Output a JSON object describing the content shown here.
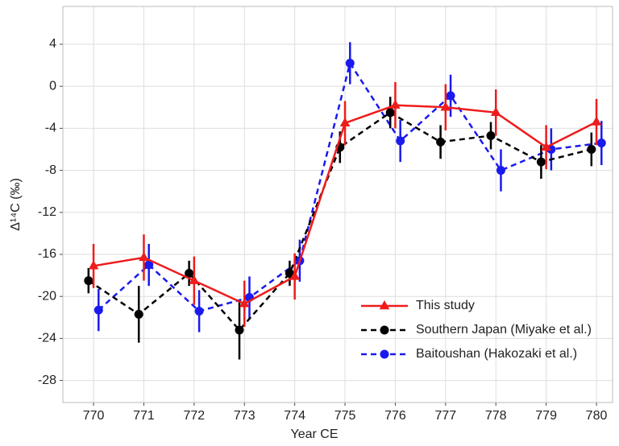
{
  "chart_data": {
    "type": "line",
    "xlabel": "Year CE",
    "ylabel": "Δ¹⁴C (‰)",
    "xlim": [
      769.39,
      780.32
    ],
    "xticks": [
      770,
      771,
      772,
      773,
      774,
      775,
      776,
      777,
      778,
      779,
      780
    ],
    "ylim": [
      -30.1,
      7.6
    ],
    "yticks": [
      -28,
      -24,
      -20,
      -16,
      -12,
      -8,
      -4,
      0,
      4
    ],
    "grid": true,
    "legend": "lower right",
    "series": [
      {
        "name": "This study",
        "color": "#ee1c1c",
        "linestyle": "solid",
        "marker": "triangle",
        "x": [
          770,
          771,
          772,
          773,
          774,
          775,
          776,
          777,
          778,
          779,
          780
        ],
        "values": [
          -17.1,
          -16.3,
          -18.5,
          -20.7,
          -18.1,
          -3.5,
          -1.8,
          -2.0,
          -2.5,
          -5.8,
          -3.4
        ],
        "errors": [
          2.1,
          2.2,
          2.3,
          2.2,
          2.2,
          2.1,
          2.2,
          2.2,
          2.2,
          2.1,
          2.2
        ]
      },
      {
        "name": "Southern Japan (Miyake et al.)",
        "color": "#000000",
        "linestyle": "dashed",
        "marker": "circle",
        "x": [
          769.9,
          770.9,
          771.9,
          772.9,
          773.9,
          774.9,
          775.9,
          776.9,
          777.9,
          778.9,
          779.9
        ],
        "values": [
          -18.5,
          -21.7,
          -17.8,
          -23.2,
          -17.8,
          -5.8,
          -2.5,
          -5.3,
          -4.7,
          -7.2,
          -6.0
        ],
        "errors": [
          1.2,
          2.7,
          1.2,
          2.8,
          1.2,
          1.5,
          1.5,
          1.6,
          1.3,
          1.6,
          1.6
        ]
      },
      {
        "name": "Baitoushan (Hakozaki et al.)",
        "color": "#1a1aee",
        "linestyle": "dashed",
        "marker": "circle",
        "x": [
          770.1,
          771.1,
          772.1,
          773.1,
          774.1,
          775.1,
          776.1,
          777.1,
          778.1,
          779.1,
          780.1
        ],
        "values": [
          -21.3,
          -17.0,
          -21.4,
          -20.1,
          -16.6,
          2.2,
          -5.2,
          -0.9,
          -8.0,
          -6.0,
          -5.4
        ],
        "errors": [
          2.0,
          2.0,
          2.0,
          2.0,
          2.0,
          2.0,
          2.0,
          2.0,
          2.0,
          2.0,
          2.1
        ]
      }
    ]
  }
}
